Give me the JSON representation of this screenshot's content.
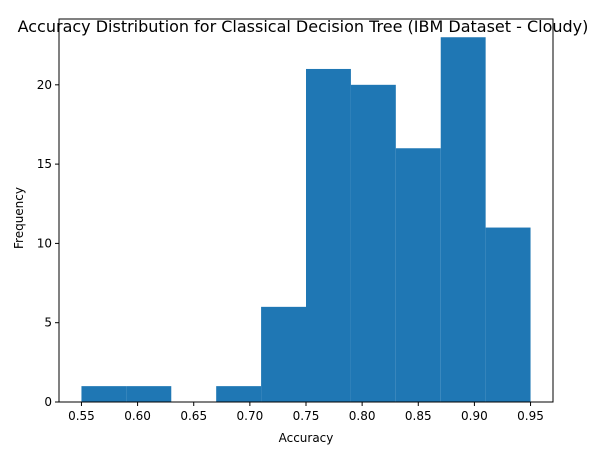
{
  "chart_data": {
    "type": "bar",
    "title": "Accuracy Distribution for Classical Decision Tree (IBM Dataset - Cloudy)",
    "xlabel": "Accuracy",
    "ylabel": "Frequency",
    "bin_edges": [
      0.55,
      0.59,
      0.63,
      0.67,
      0.71,
      0.75,
      0.79,
      0.83,
      0.87,
      0.91,
      0.95
    ],
    "values": [
      1,
      1,
      0,
      1,
      6,
      21,
      20,
      16,
      23,
      11
    ],
    "xlim": [
      0.53,
      0.97
    ],
    "ylim": [
      0,
      24.15
    ],
    "xticks": [
      0.55,
      0.6,
      0.65,
      0.7,
      0.75,
      0.8,
      0.85,
      0.9,
      0.95
    ],
    "xtick_labels": [
      "0.55",
      "0.60",
      "0.65",
      "0.70",
      "0.75",
      "0.80",
      "0.85",
      "0.90",
      "0.95"
    ],
    "yticks": [
      0,
      5,
      10,
      15,
      20
    ],
    "ytick_labels": [
      "0",
      "5",
      "10",
      "15",
      "20"
    ],
    "bar_color": "#1f77b4",
    "grid": false,
    "legend": "none"
  }
}
